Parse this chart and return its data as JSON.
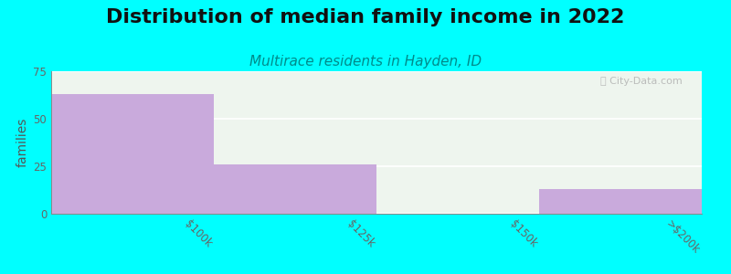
{
  "title": "Distribution of median family income in 2022",
  "subtitle": "Multirace residents in Hayden, ID",
  "categories": [
    "$100k",
    "$125k",
    "$150k",
    ">$200k"
  ],
  "values": [
    63,
    26,
    0,
    13
  ],
  "bar_color": "#C9AADC",
  "bg_color": "#00FFFF",
  "plot_bg_color": "#EEF5EE",
  "title_fontsize": 16,
  "subtitle_fontsize": 11,
  "ylabel": "families",
  "ylabel_fontsize": 10,
  "tick_fontsize": 8.5,
  "ylim": [
    0,
    75
  ],
  "yticks": [
    0,
    25,
    50,
    75
  ],
  "watermark": "ⓘ City-Data.com",
  "subtitle_color": "#008B8B",
  "grid_color": "#FFFFFF",
  "title_color": "#111111"
}
